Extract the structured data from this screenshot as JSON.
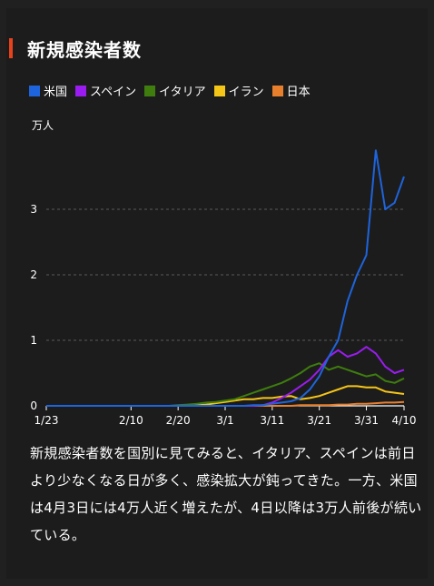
{
  "header": {
    "title": "新規感染者数"
  },
  "chart_data": {
    "type": "line",
    "title": "新規感染者数",
    "ylabel": "万人",
    "ylim": [
      0,
      4
    ],
    "yticks": [
      0,
      1,
      2,
      3
    ],
    "x_tick_labels": [
      "1/23",
      "2/10",
      "2/20",
      "3/1",
      "3/11",
      "3/21",
      "3/31",
      "4/10"
    ],
    "grid": true,
    "legend_position": "top-left",
    "x": [
      "1/23",
      "1/25",
      "1/27",
      "1/29",
      "1/31",
      "2/2",
      "2/4",
      "2/6",
      "2/8",
      "2/10",
      "2/12",
      "2/14",
      "2/16",
      "2/18",
      "2/20",
      "2/22",
      "2/24",
      "2/26",
      "2/28",
      "3/1",
      "3/3",
      "3/5",
      "3/7",
      "3/9",
      "3/11",
      "3/13",
      "3/15",
      "3/17",
      "3/19",
      "3/21",
      "3/23",
      "3/25",
      "3/27",
      "3/29",
      "3/31",
      "4/2",
      "4/4",
      "4/6",
      "4/8"
    ],
    "series": [
      {
        "name": "米国",
        "color": "#1e64dc",
        "values": [
          0,
          0,
          0,
          0,
          0,
          0,
          0,
          0,
          0,
          0,
          0,
          0,
          0,
          0,
          0,
          0,
          0,
          0,
          0,
          0,
          0,
          0,
          0.01,
          0.01,
          0.03,
          0.05,
          0.07,
          0.12,
          0.25,
          0.45,
          0.75,
          1.0,
          1.6,
          2.0,
          2.3,
          3.9,
          3.0,
          3.1,
          3.5
        ]
      },
      {
        "name": "スペイン",
        "color": "#9b1cf0",
        "values": [
          0,
          0,
          0,
          0,
          0,
          0,
          0,
          0,
          0,
          0,
          0,
          0,
          0,
          0,
          0,
          0,
          0,
          0,
          0,
          0,
          0,
          0,
          0,
          0.01,
          0.05,
          0.12,
          0.2,
          0.3,
          0.4,
          0.55,
          0.75,
          0.85,
          0.75,
          0.8,
          0.9,
          0.8,
          0.6,
          0.5,
          0.55
        ]
      },
      {
        "name": "イタリア",
        "color": "#3e7d0e",
        "values": [
          0,
          0,
          0,
          0,
          0,
          0,
          0,
          0,
          0,
          0,
          0,
          0,
          0,
          0,
          0.01,
          0.02,
          0.03,
          0.05,
          0.06,
          0.08,
          0.1,
          0.15,
          0.2,
          0.25,
          0.3,
          0.35,
          0.42,
          0.5,
          0.6,
          0.65,
          0.55,
          0.6,
          0.55,
          0.5,
          0.45,
          0.48,
          0.38,
          0.35,
          0.42
        ]
      },
      {
        "name": "イラン",
        "color": "#f5c518",
        "values": [
          0,
          0,
          0,
          0,
          0,
          0,
          0,
          0,
          0,
          0,
          0,
          0,
          0,
          0,
          0,
          0,
          0.01,
          0.02,
          0.04,
          0.06,
          0.08,
          0.1,
          0.1,
          0.12,
          0.12,
          0.14,
          0.15,
          0.1,
          0.12,
          0.15,
          0.2,
          0.25,
          0.3,
          0.3,
          0.28,
          0.28,
          0.22,
          0.2,
          0.18
        ]
      },
      {
        "name": "日本",
        "color": "#e87f2d",
        "values": [
          0,
          0,
          0,
          0,
          0,
          0,
          0,
          0,
          0,
          0,
          0,
          0,
          0,
          0,
          0,
          0,
          0,
          0,
          0,
          0,
          0,
          0,
          0,
          0,
          0,
          0,
          0,
          0.01,
          0.01,
          0.01,
          0.01,
          0.02,
          0.02,
          0.03,
          0.03,
          0.04,
          0.05,
          0.05,
          0.06
        ]
      }
    ]
  },
  "caption": "新規感染者数を国別に見てみると、イタリア、スペインは前日より少なくなる日が多く、感染拡大が鈍ってきた。一方、米国は4月3日には4万人近く増えたが、4日以降は3万人前後が続いている。"
}
